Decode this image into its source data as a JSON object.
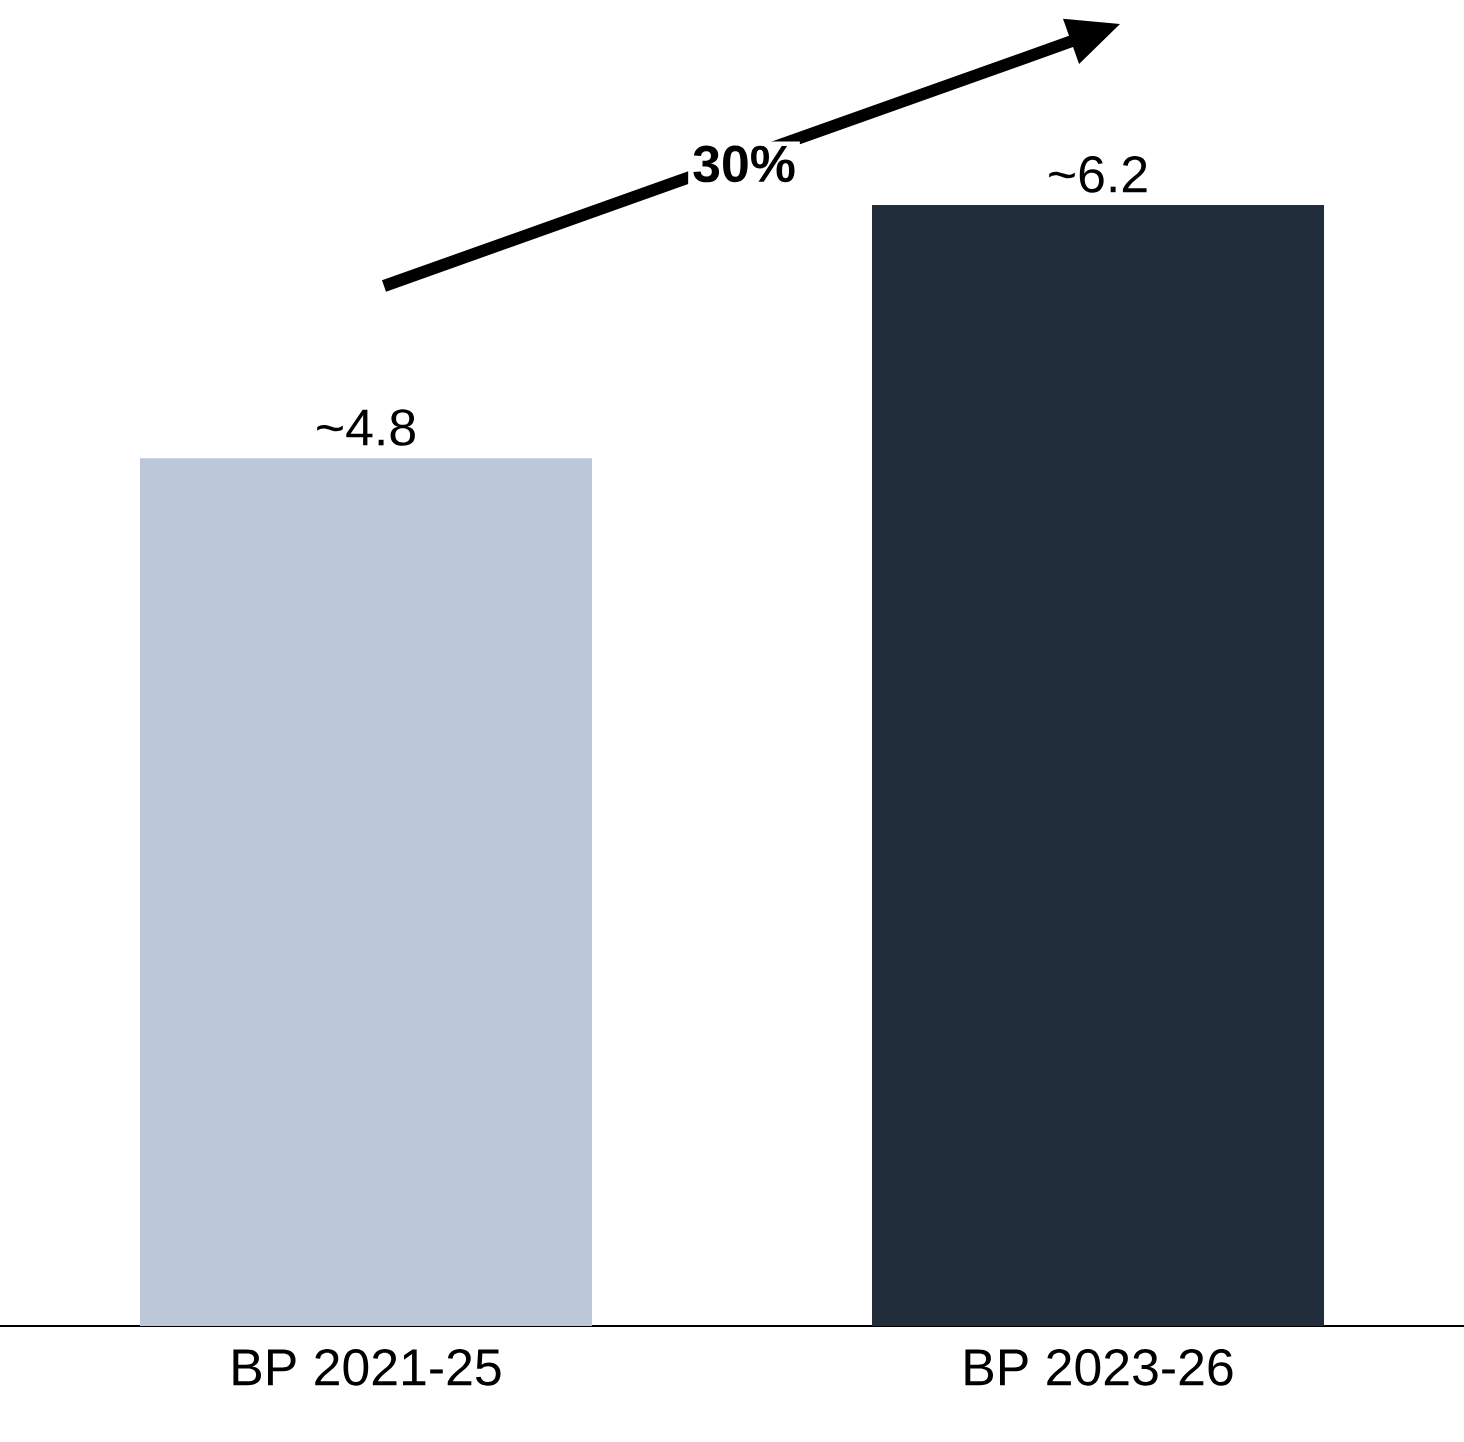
{
  "chart_data": {
    "type": "bar",
    "categories": [
      "BP 2021-25",
      "BP 2023-26"
    ],
    "values": [
      4.8,
      6.2
    ],
    "colors": [
      "#bcc8da",
      "#222d3c"
    ],
    "value_labels": [
      "~4.8",
      "~6.2"
    ],
    "annotations": [
      "30%"
    ]
  }
}
